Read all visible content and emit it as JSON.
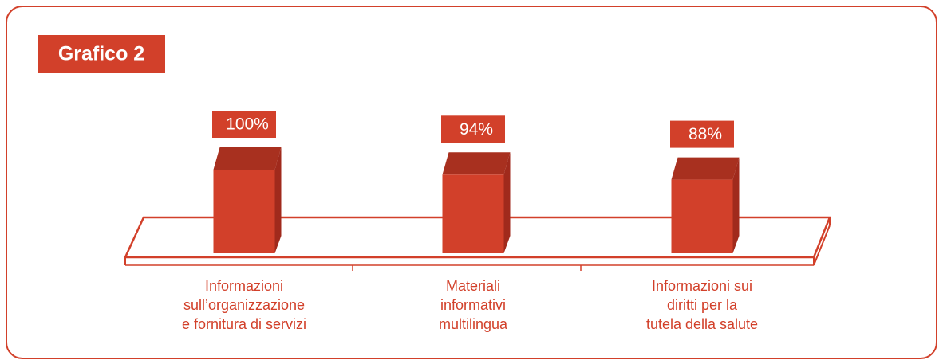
{
  "chart_data": {
    "type": "bar",
    "title": "Grafico 2",
    "categories": [
      "Informazioni\nsull’organizzazione\ne fornitura di servizi",
      "Materiali\ninformativi\nmultilingua",
      "Informazioni sui\ndiritti per la\ntutela della salute"
    ],
    "values": [
      100,
      94,
      88
    ],
    "value_labels": [
      "100%",
      "94%",
      "88%"
    ],
    "color": "#d2402a"
  }
}
